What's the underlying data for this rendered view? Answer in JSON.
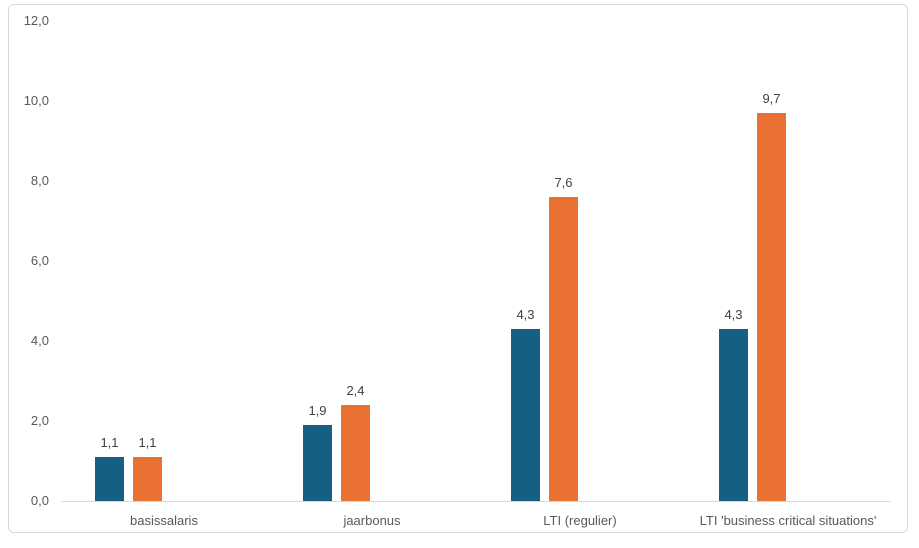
{
  "chart_data": {
    "type": "bar",
    "title": "",
    "xlabel": "",
    "ylabel": "",
    "categories": [
      "basissalaris",
      "jaarbonus",
      "LTI (regulier)",
      "LTI 'business critical situations'"
    ],
    "series": [
      {
        "id": "series-1",
        "color": "#156082",
        "values": [
          1.1,
          1.9,
          4.3,
          4.3
        ],
        "labels": [
          "1,1",
          "1,9",
          "4,3",
          "4,3"
        ]
      },
      {
        "id": "series-2",
        "color": "#E97132",
        "values": [
          1.1,
          2.4,
          7.6,
          9.7
        ],
        "labels": [
          "1,1",
          "2,4",
          "7,6",
          "9,7"
        ]
      }
    ],
    "y_axis": {
      "min": 0,
      "max": 12,
      "step": 2,
      "ticks": [
        "0,0",
        "2,0",
        "4,0",
        "6,0",
        "8,0",
        "10,0",
        "12,0"
      ]
    },
    "grid": false,
    "legend": "none",
    "data_labels": true,
    "colors": {
      "axis_text": "#595959",
      "data_label_text": "#404040",
      "axis_line": "#D9D9D9",
      "frame_border": "#D9D9D9",
      "background": "#FFFFFF"
    }
  }
}
